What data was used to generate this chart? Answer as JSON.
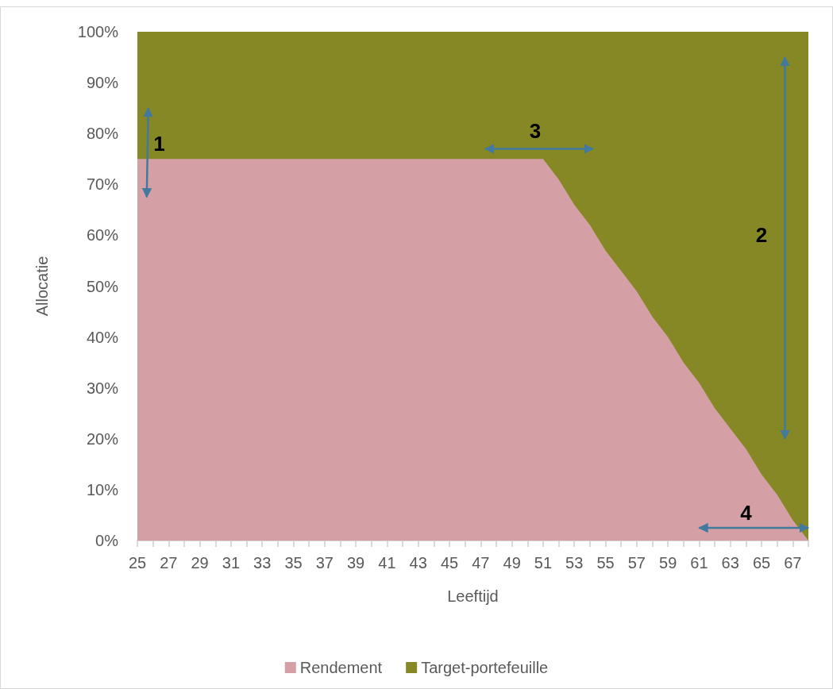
{
  "chart_data": {
    "type": "area",
    "stacked": true,
    "xlabel": "Leeftijd",
    "ylabel": "Allocatie",
    "x": [
      25,
      26,
      27,
      28,
      29,
      30,
      31,
      32,
      33,
      34,
      35,
      36,
      37,
      38,
      39,
      40,
      41,
      42,
      43,
      44,
      45,
      46,
      47,
      48,
      49,
      50,
      51,
      52,
      53,
      54,
      55,
      56,
      57,
      58,
      59,
      60,
      61,
      62,
      63,
      64,
      65,
      66,
      67,
      68
    ],
    "series": [
      {
        "name": "Rendement",
        "color": "#d4a0a6",
        "values": [
          75,
          75,
          75,
          75,
          75,
          75,
          75,
          75,
          75,
          75,
          75,
          75,
          75,
          75,
          75,
          75,
          75,
          75,
          75,
          75,
          75,
          75,
          75,
          75,
          75,
          75,
          75,
          71,
          66,
          62,
          57,
          53,
          49,
          44,
          40,
          35,
          31,
          26,
          22,
          18,
          13,
          9,
          4,
          0
        ]
      },
      {
        "name": "Target-portefeuille",
        "color": "#868725",
        "values": [
          25,
          25,
          25,
          25,
          25,
          25,
          25,
          25,
          25,
          25,
          25,
          25,
          25,
          25,
          25,
          25,
          25,
          25,
          25,
          25,
          25,
          25,
          25,
          25,
          25,
          25,
          25,
          29,
          34,
          38,
          43,
          47,
          51,
          56,
          60,
          65,
          69,
          74,
          78,
          82,
          87,
          91,
          96,
          100
        ]
      }
    ],
    "xlim": [
      25,
      68
    ],
    "xticks": [
      25,
      {
        "value": 26,
        "label": null
      },
      27,
      {
        "value": 28,
        "label": null
      },
      29,
      {
        "value": 30,
        "label": null
      },
      31,
      {
        "value": 32,
        "label": null
      },
      33,
      {
        "value": 34,
        "label": null
      },
      35,
      {
        "value": 36,
        "label": null
      },
      37,
      {
        "value": 38,
        "label": null
      },
      39,
      {
        "value": 40,
        "label": null
      },
      41,
      {
        "value": 42,
        "label": null
      },
      43,
      {
        "value": 44,
        "label": null
      },
      45,
      {
        "value": 46,
        "label": null
      },
      47,
      {
        "value": 48,
        "label": null
      },
      49,
      {
        "value": 50,
        "label": null
      },
      51,
      {
        "value": 52,
        "label": null
      },
      53,
      {
        "value": 54,
        "label": null
      },
      55,
      {
        "value": 56,
        "label": null
      },
      57,
      {
        "value": 58,
        "label": null
      },
      59,
      {
        "value": 60,
        "label": null
      },
      61,
      {
        "value": 62,
        "label": null
      },
      63,
      {
        "value": 64,
        "label": null
      },
      65,
      {
        "value": 66,
        "label": null
      },
      67,
      {
        "value": 68,
        "label": null
      }
    ],
    "ylim": [
      0,
      100
    ],
    "yticks": [
      {
        "value": 0,
        "label": "0%"
      },
      {
        "value": 10,
        "label": "10%"
      },
      {
        "value": 20,
        "label": "20%"
      },
      {
        "value": 30,
        "label": "30%"
      },
      {
        "value": 40,
        "label": "40%"
      },
      {
        "value": 50,
        "label": "50%"
      },
      {
        "value": 60,
        "label": "60%"
      },
      {
        "value": 70,
        "label": "70%"
      },
      {
        "value": 80,
        "label": "80%"
      },
      {
        "value": 90,
        "label": "90%"
      },
      {
        "value": 100,
        "label": "100%"
      }
    ],
    "grid": false,
    "legend": "bottom",
    "annotations": [
      "1",
      "2",
      "3",
      "4"
    ]
  }
}
